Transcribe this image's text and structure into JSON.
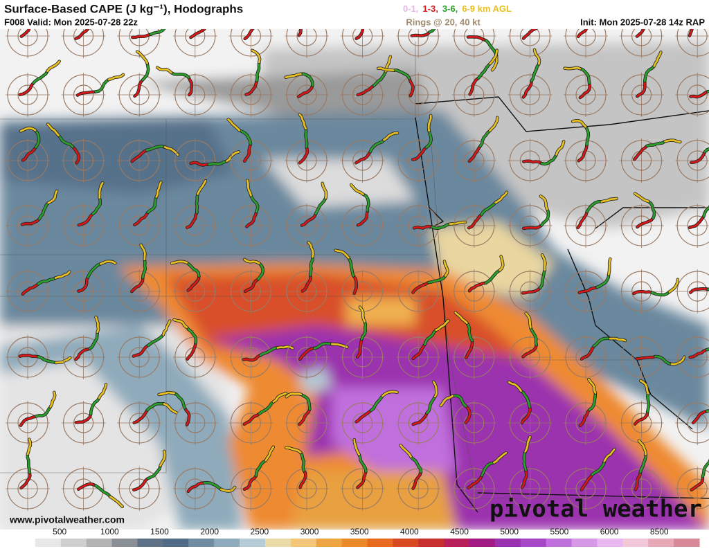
{
  "header": {
    "title": "Surface-Based CAPE (J kg⁻¹), Hodographs",
    "valid": "F008 Valid: Mon 2025-07-28 22z",
    "init": "Init: Mon 2025-07-28 14z RAP",
    "rings": "Rings @ 20, 40 kt",
    "legend": [
      {
        "label": "0-1,",
        "color": "#e8b4e8"
      },
      {
        "label": "1-3,",
        "color": "#d81818"
      },
      {
        "label": "3-6,",
        "color": "#2aa02a"
      },
      {
        "label": "6-9 km AGL",
        "color": "#e8c020"
      }
    ]
  },
  "colorbar": {
    "ticks": [
      500,
      1000,
      1500,
      2000,
      2500,
      3000,
      3500,
      4000,
      4500,
      5000,
      5500,
      6000,
      8500
    ],
    "colors": [
      "#ffffff",
      "#e8e8e8",
      "#cfcfcf",
      "#b4b4b4",
      "#8a8f96",
      "#5f7184",
      "#4f6b85",
      "#6f8ca0",
      "#8eaabb",
      "#b5ccd6",
      "#e9dca8",
      "#f2c777",
      "#f0a545",
      "#ec8a2a",
      "#e86a20",
      "#d84a22",
      "#c83030",
      "#b8205a",
      "#a21a86",
      "#9a30b0",
      "#a848c8",
      "#c070dc",
      "#d898e8",
      "#e8b8f0",
      "#f0c8d8",
      "#e8a8b8",
      "#d88898"
    ]
  },
  "footer": {
    "url": "www.pivotalweather.com",
    "logo": "pivotal weather"
  }
}
